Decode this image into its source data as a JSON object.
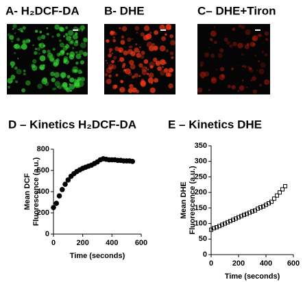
{
  "panels": [
    {
      "label": "A- H₂DCF-DA",
      "color": "#33dd33"
    },
    {
      "label": "B- DHE",
      "color": "#ff3a1a"
    },
    {
      "label": "C– DHE+Tiron",
      "color": "#e02010"
    }
  ],
  "chart_data": [
    {
      "type": "scatter",
      "title": "D – Kinetics H₂DCF-DA",
      "marker": "circle",
      "color": "#000000",
      "xlabel": "Time (seconds)",
      "ylabel": [
        "Mean DCF",
        "Fluorescence  (a.u.)"
      ],
      "x": [
        0,
        20,
        40,
        60,
        80,
        100,
        120,
        140,
        160,
        180,
        200,
        220,
        240,
        260,
        280,
        300,
        320,
        340,
        360,
        380,
        400,
        420,
        440,
        460,
        480,
        500,
        520,
        540
      ],
      "values": [
        250,
        290,
        360,
        420,
        470,
        510,
        545,
        570,
        590,
        605,
        620,
        630,
        640,
        650,
        665,
        680,
        700,
        710,
        705,
        700,
        700,
        700,
        695,
        695,
        690,
        690,
        690,
        685
      ],
      "xlim": [
        0,
        600
      ],
      "xticks": [
        0,
        200,
        400,
        600
      ],
      "ylim": [
        0,
        800
      ],
      "yticks": [
        0,
        200,
        400,
        600,
        800
      ]
    },
    {
      "type": "scatter",
      "title": "E – Kinetics DHE",
      "marker": "square",
      "color": "#000000",
      "xlabel": "Time (seconds)",
      "ylabel": [
        "Mean DHE",
        "Fluorescence (a.u.)"
      ],
      "x": [
        0,
        20,
        40,
        60,
        80,
        100,
        120,
        140,
        160,
        180,
        200,
        220,
        240,
        260,
        280,
        300,
        320,
        340,
        360,
        380,
        400,
        420,
        440,
        460,
        480,
        500,
        520,
        540
      ],
      "values": [
        80,
        85,
        88,
        92,
        96,
        100,
        104,
        108,
        112,
        116,
        120,
        124,
        128,
        131,
        135,
        139,
        142,
        148,
        152,
        155,
        160,
        165,
        170,
        180,
        190,
        200,
        210,
        220
      ],
      "xlim": [
        0,
        600
      ],
      "xticks": [
        0,
        200,
        400,
        600
      ],
      "ylim": [
        0,
        350
      ],
      "yticks": [
        0,
        50,
        100,
        150,
        200,
        250,
        300,
        350
      ]
    }
  ]
}
